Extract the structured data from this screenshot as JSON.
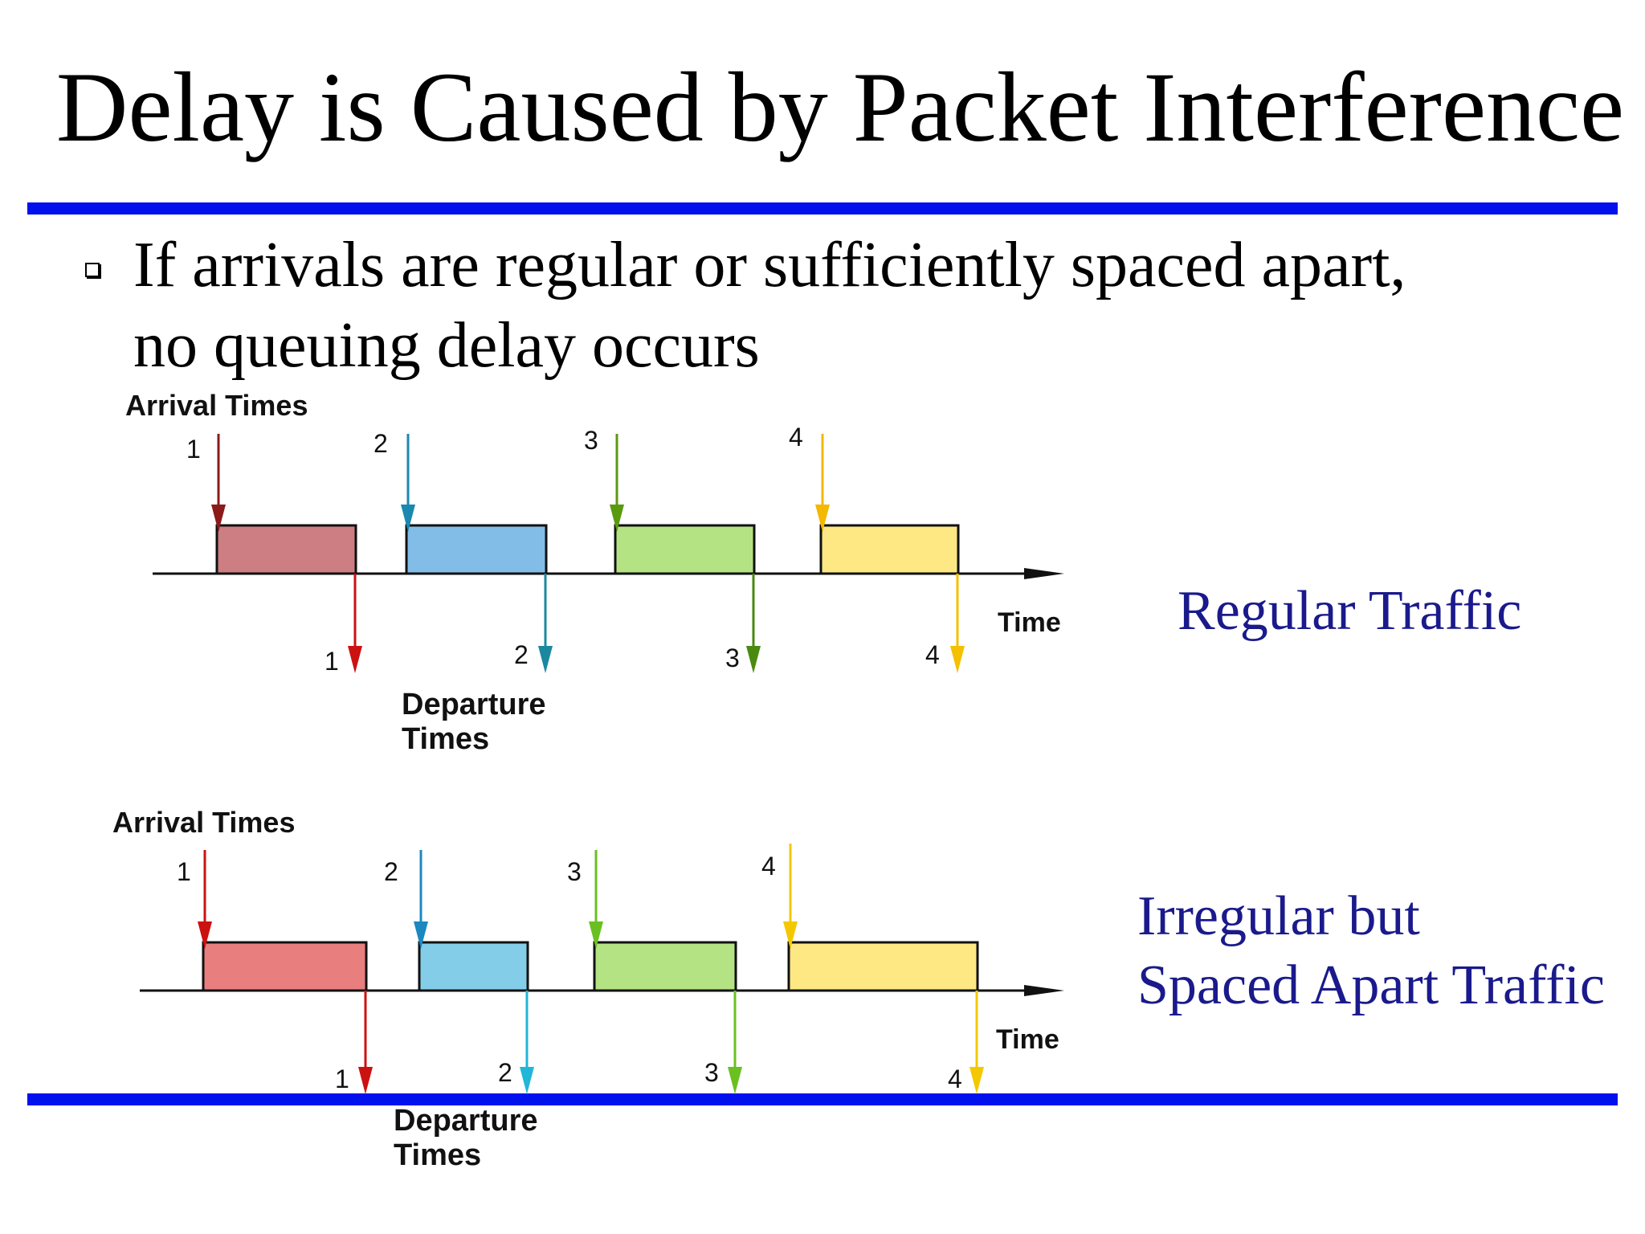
{
  "title": "Delay is Caused by Packet Interference",
  "bullet": {
    "line1": "If arrivals  are regular or sufficiently spaced apart,",
    "line2": "no queuing delay occurs"
  },
  "labels": {
    "arrival_times": "Arrival Times",
    "departure_line1": "Departure",
    "departure_line2": "Times",
    "time": "Time"
  },
  "captions": {
    "regular": "Regular Traffic",
    "irregular_line1": "Irregular but",
    "irregular_line2": "Spaced Apart Traffic"
  },
  "diagrams": [
    {
      "packets": [
        {
          "num": "1",
          "fill": "#cd7e82",
          "arrow": "#8b1a1a",
          "dep_arrow": "#cc1111"
        },
        {
          "num": "2",
          "fill": "#82bde8",
          "arrow": "#1b88b0",
          "dep_arrow": "#1b88a0"
        },
        {
          "num": "3",
          "fill": "#b4e383",
          "arrow": "#5a9a10",
          "dep_arrow": "#4a8a10"
        },
        {
          "num": "4",
          "fill": "#fde883",
          "arrow": "#f4b800",
          "dep_arrow": "#f4c000"
        }
      ]
    },
    {
      "packets": [
        {
          "num": "1",
          "fill": "#e97e7e",
          "arrow": "#cc1111",
          "dep_arrow": "#cc1111"
        },
        {
          "num": "2",
          "fill": "#84cde8",
          "arrow": "#1b88c0",
          "dep_arrow": "#22b6d8"
        },
        {
          "num": "3",
          "fill": "#b4e383",
          "arrow": "#6ac020",
          "dep_arrow": "#6ac020"
        },
        {
          "num": "4",
          "fill": "#fde883",
          "arrow": "#f4c800",
          "dep_arrow": "#f4c800"
        }
      ]
    }
  ]
}
